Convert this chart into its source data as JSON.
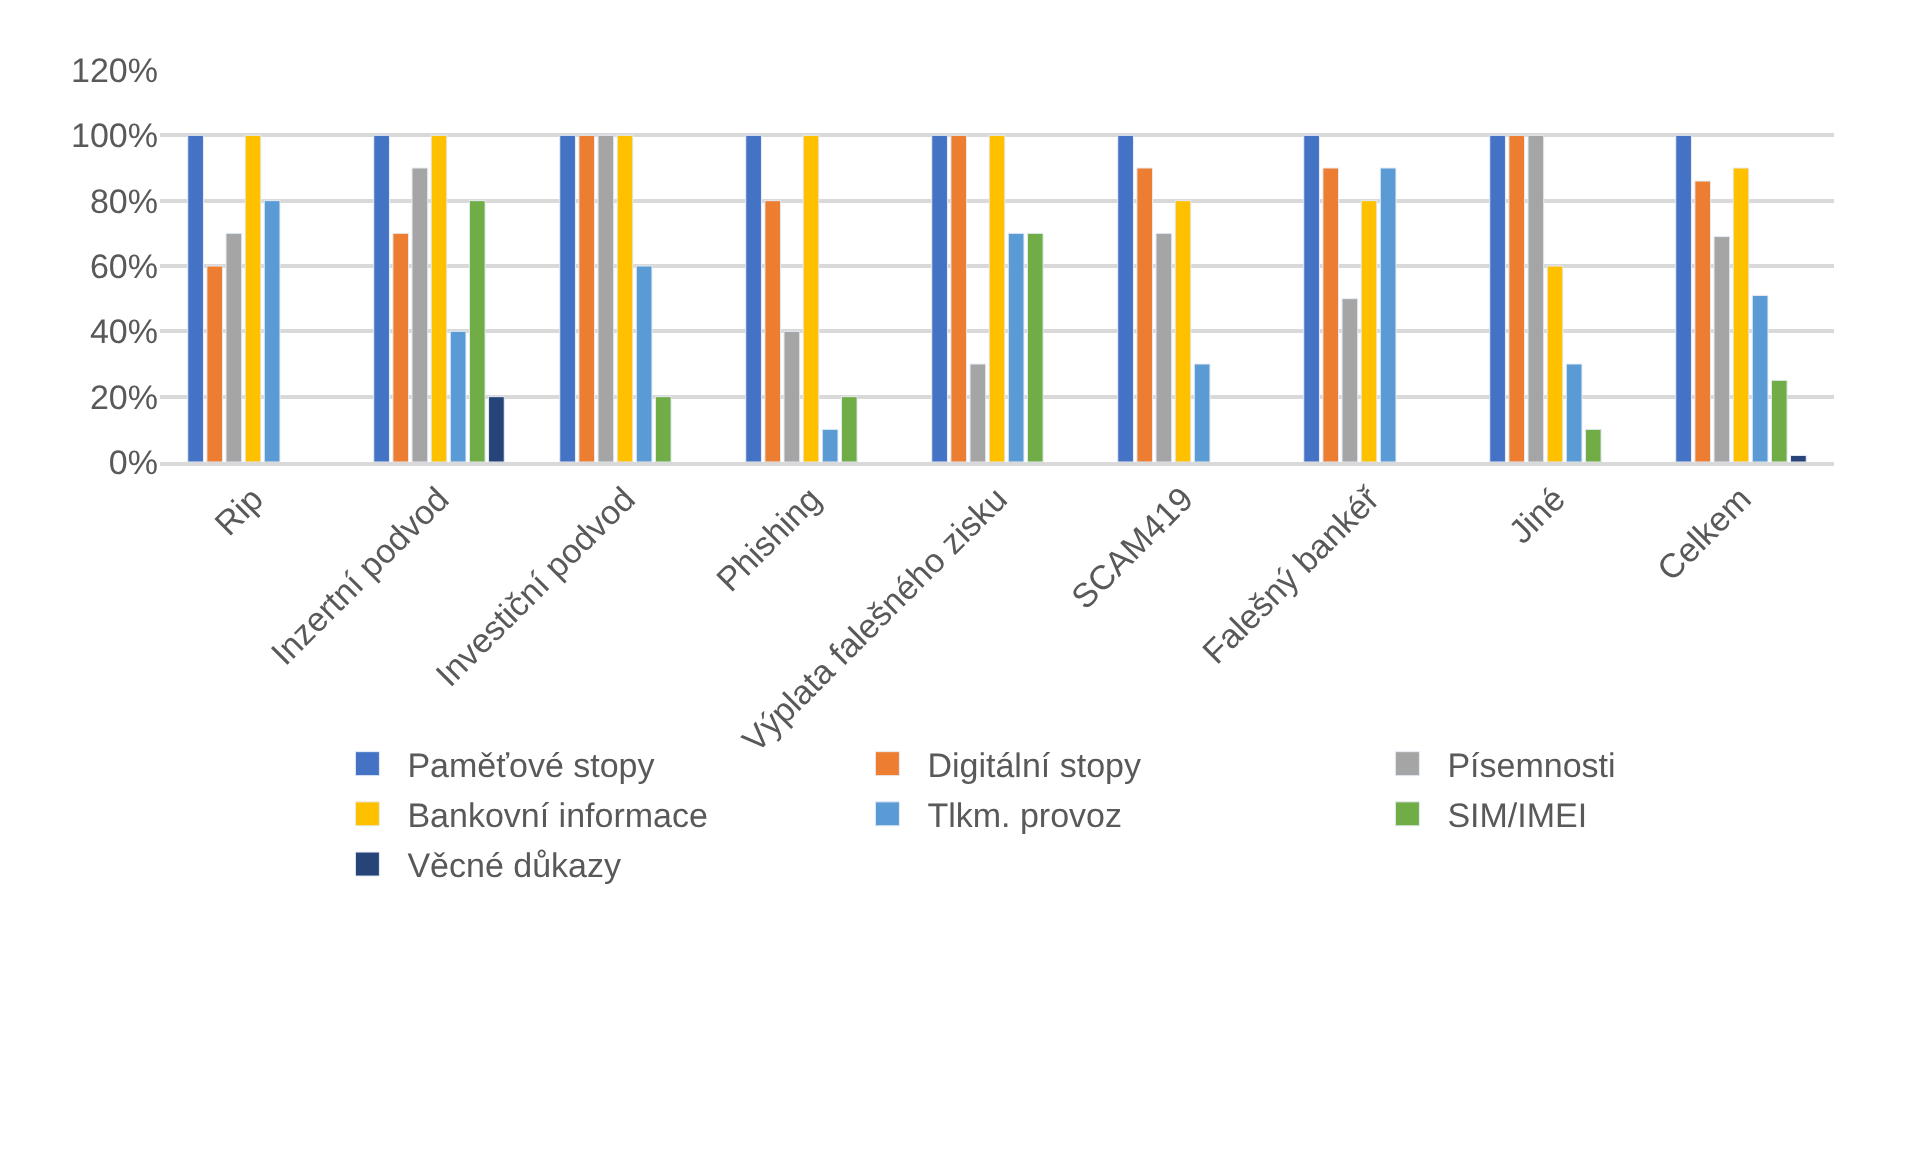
{
  "chart_data": {
    "type": "bar",
    "categories": [
      "Rip",
      "Inzertní podvod",
      "Investiční podvod",
      "Phishing",
      "Výplata falešného zisku",
      "SCAM419",
      "Falešný bankéř",
      "Jiné",
      "Celkem"
    ],
    "series": [
      {
        "name": "Paměťové stopy",
        "color": "#4472c4",
        "values": [
          100,
          100,
          100,
          100,
          100,
          100,
          100,
          100,
          100
        ]
      },
      {
        "name": "Digitální stopy",
        "color": "#ed7d31",
        "values": [
          60,
          70,
          100,
          80,
          100,
          90,
          90,
          100,
          86
        ]
      },
      {
        "name": "Písemnosti",
        "color": "#a5a5a5",
        "values": [
          70,
          90,
          100,
          40,
          30,
          70,
          50,
          100,
          69
        ]
      },
      {
        "name": "Bankovní informace",
        "color": "#ffc000",
        "values": [
          100,
          100,
          100,
          100,
          100,
          80,
          80,
          60,
          90
        ]
      },
      {
        "name": "Tlkm. provoz",
        "color": "#5b9bd5",
        "values": [
          80,
          40,
          60,
          10,
          70,
          30,
          90,
          30,
          51
        ]
      },
      {
        "name": "SIM/IMEI",
        "color": "#70ad47",
        "values": [
          null,
          80,
          20,
          20,
          70,
          null,
          null,
          10,
          25
        ]
      },
      {
        "name": "Věcné důkazy",
        "color": "#264478",
        "values": [
          null,
          20,
          null,
          null,
          null,
          null,
          null,
          null,
          2
        ]
      }
    ],
    "ylim": [
      0,
      120
    ],
    "yticks": [
      {
        "value": 0,
        "label": "0%"
      },
      {
        "value": 20,
        "label": "20%"
      },
      {
        "value": 40,
        "label": "40%"
      },
      {
        "value": 60,
        "label": "60%"
      },
      {
        "value": 80,
        "label": "80%"
      },
      {
        "value": 100,
        "label": "100%"
      },
      {
        "value": 120,
        "label": "120%"
      }
    ],
    "grid": "y",
    "legend": "bottom"
  }
}
